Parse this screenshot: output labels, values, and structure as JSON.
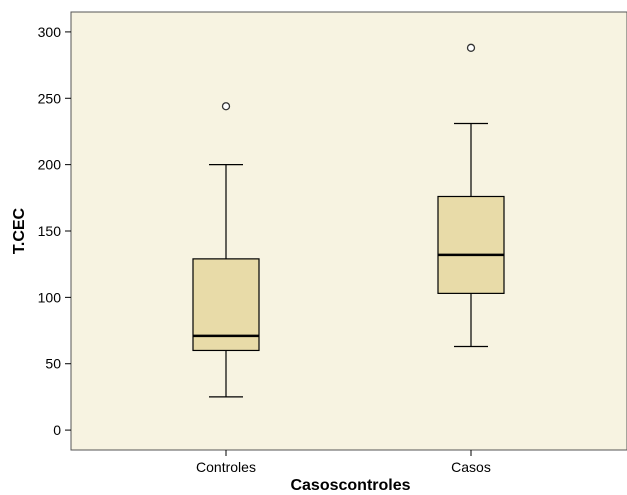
{
  "chart_data": {
    "type": "boxplot",
    "title": "",
    "xlabel": "Casoscontroles",
    "ylabel": "T.CEC",
    "ylim": [
      -15,
      315
    ],
    "yticks": [
      0,
      50,
      100,
      150,
      200,
      250,
      300
    ],
    "categories": [
      "Controles",
      "Casos"
    ],
    "boxes": [
      {
        "category": "Controles",
        "whisker_low": 25,
        "q1": 60,
        "median": 71,
        "q3": 129,
        "whisker_high": 200,
        "outliers": [
          244
        ]
      },
      {
        "category": "Casos",
        "whisker_low": 63,
        "q1": 103,
        "median": 132,
        "q3": 176,
        "whisker_high": 231,
        "outliers": [
          288
        ]
      }
    ],
    "grid": false,
    "colors": {
      "plot_background": "#f7f3e1",
      "box_fill": "#e8dba8",
      "box_stroke": "#000000",
      "median": "#000000"
    }
  }
}
